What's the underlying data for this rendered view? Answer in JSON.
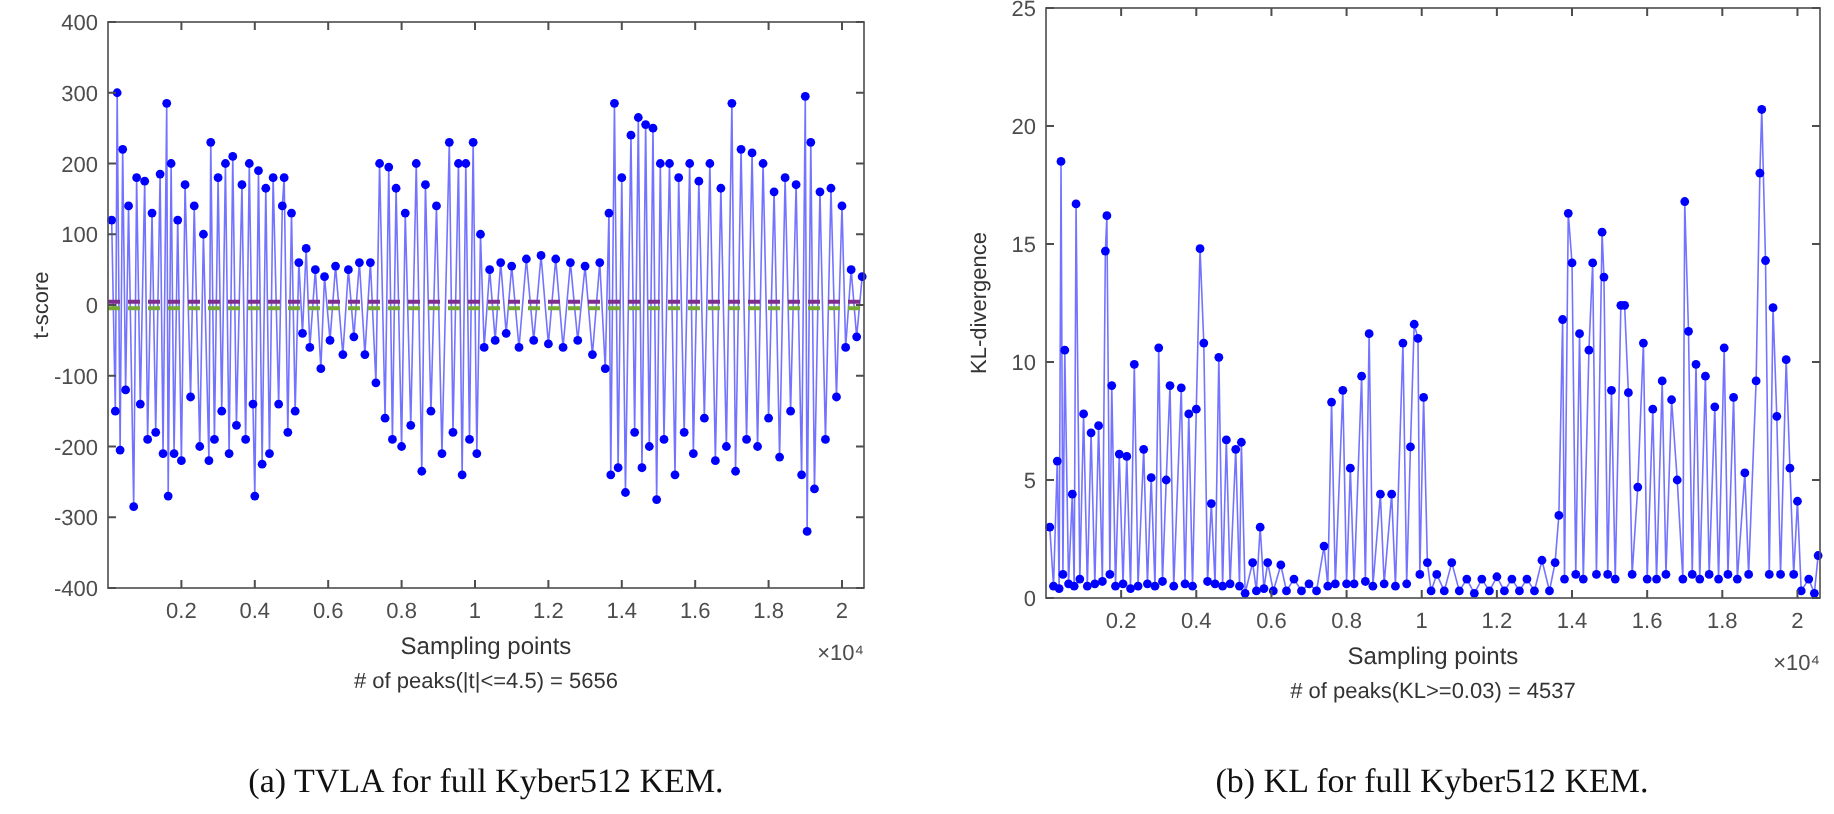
{
  "chart_data": [
    {
      "type": "line",
      "title": "(a) TVLA for full Kyber512 KEM.",
      "xlabel": "Sampling points",
      "ylabel": "t-score",
      "annotations": [
        "×10⁴",
        "# of peaks(|t|<=4.5) = 5656"
      ],
      "marker": "circle",
      "xlim": [
        0,
        2.06
      ],
      "xticks": [
        0.2,
        0.4,
        0.6,
        0.8,
        1,
        1.2,
        1.4,
        1.6,
        1.8,
        2
      ],
      "ylim": [
        -400,
        400
      ],
      "yticks": [
        -400,
        -300,
        -200,
        -100,
        0,
        100,
        200,
        300,
        400
      ],
      "ref_lines": [
        {
          "axis": "y",
          "value": 4.5,
          "color": "#7e2f8e",
          "line_style": "dashed"
        },
        {
          "axis": "y",
          "value": -4.5,
          "color": "#77ac30",
          "line_style": "dashed"
        }
      ],
      "x": [
        0.01,
        0.02,
        0.025,
        0.033,
        0.04,
        0.048,
        0.056,
        0.07,
        0.078,
        0.088,
        0.1,
        0.108,
        0.12,
        0.13,
        0.142,
        0.15,
        0.16,
        0.164,
        0.172,
        0.18,
        0.19,
        0.2,
        0.21,
        0.225,
        0.235,
        0.25,
        0.26,
        0.275,
        0.28,
        0.29,
        0.3,
        0.31,
        0.32,
        0.33,
        0.34,
        0.35,
        0.365,
        0.375,
        0.385,
        0.395,
        0.4,
        0.41,
        0.42,
        0.43,
        0.44,
        0.45,
        0.465,
        0.475,
        0.48,
        0.49,
        0.5,
        0.51,
        0.52,
        0.53,
        0.54,
        0.55,
        0.565,
        0.58,
        0.59,
        0.605,
        0.62,
        0.64,
        0.655,
        0.67,
        0.685,
        0.7,
        0.715,
        0.73,
        0.74,
        0.755,
        0.765,
        0.775,
        0.785,
        0.8,
        0.81,
        0.825,
        0.84,
        0.855,
        0.865,
        0.88,
        0.895,
        0.91,
        0.93,
        0.94,
        0.955,
        0.965,
        0.975,
        0.985,
        0.995,
        1.005,
        1.015,
        1.025,
        1.04,
        1.055,
        1.07,
        1.085,
        1.1,
        1.12,
        1.14,
        1.16,
        1.18,
        1.2,
        1.22,
        1.24,
        1.26,
        1.28,
        1.3,
        1.32,
        1.34,
        1.355,
        1.365,
        1.37,
        1.38,
        1.39,
        1.4,
        1.41,
        1.425,
        1.435,
        1.445,
        1.455,
        1.465,
        1.475,
        1.485,
        1.495,
        1.505,
        1.515,
        1.53,
        1.545,
        1.555,
        1.57,
        1.585,
        1.595,
        1.61,
        1.625,
        1.64,
        1.655,
        1.67,
        1.685,
        1.7,
        1.71,
        1.725,
        1.74,
        1.755,
        1.77,
        1.785,
        1.8,
        1.815,
        1.83,
        1.845,
        1.86,
        1.875,
        1.89,
        1.9,
        1.905,
        1.915,
        1.925,
        1.94,
        1.955,
        1.97,
        1.985,
        2,
        2.01,
        2.025,
        2.04,
        2.055
      ],
      "series": [
        {
          "color": "#0000ff",
          "values": [
            120,
            -150,
            300,
            -205,
            220,
            -120,
            140,
            -285,
            180,
            -140,
            175,
            -190,
            130,
            -180,
            185,
            -210,
            285,
            -270,
            200,
            -210,
            120,
            -220,
            170,
            -130,
            140,
            -200,
            100,
            -220,
            230,
            -190,
            180,
            -150,
            200,
            -210,
            210,
            -170,
            170,
            -190,
            200,
            -140,
            -270,
            190,
            -225,
            165,
            -210,
            180,
            -140,
            140,
            180,
            -180,
            130,
            -150,
            60,
            -40,
            80,
            -60,
            50,
            -90,
            40,
            -50,
            55,
            -70,
            50,
            -45,
            60,
            -70,
            60,
            -110,
            200,
            -160,
            195,
            -190,
            165,
            -200,
            130,
            -170,
            200,
            -235,
            170,
            -150,
            140,
            -210,
            230,
            -180,
            200,
            -240,
            200,
            -190,
            230,
            -210,
            100,
            -60,
            50,
            -50,
            60,
            -40,
            55,
            -60,
            65,
            -50,
            70,
            -55,
            65,
            -60,
            60,
            -50,
            55,
            -70,
            60,
            -90,
            130,
            -240,
            285,
            -230,
            180,
            -265,
            240,
            -180,
            265,
            -230,
            255,
            -200,
            250,
            -275,
            200,
            -190,
            200,
            -240,
            180,
            -180,
            200,
            -210,
            175,
            -160,
            200,
            -220,
            165,
            -200,
            285,
            -235,
            220,
            -190,
            215,
            -200,
            200,
            -160,
            160,
            -215,
            180,
            -150,
            170,
            -240,
            295,
            -320,
            230,
            -260,
            160,
            -190,
            165,
            -130,
            140,
            -60,
            50,
            -45,
            40
          ]
        }
      ]
    },
    {
      "type": "line",
      "title": "(b)  KL for full Kyber512 KEM.",
      "xlabel": "Sampling points",
      "ylabel": "KL-divergence",
      "annotations": [
        "×10⁴",
        "# of peaks(KL>=0.03) = 4537"
      ],
      "marker": "circle",
      "xlim": [
        0,
        2.06
      ],
      "xticks": [
        0.2,
        0.4,
        0.6,
        0.8,
        1,
        1.2,
        1.4,
        1.6,
        1.8,
        2
      ],
      "ylim": [
        0,
        25
      ],
      "yticks": [
        0,
        5,
        10,
        15,
        20,
        25
      ],
      "x": [
        0.01,
        0.02,
        0.03,
        0.035,
        0.04,
        0.045,
        0.05,
        0.06,
        0.07,
        0.075,
        0.08,
        0.09,
        0.1,
        0.11,
        0.12,
        0.13,
        0.14,
        0.15,
        0.158,
        0.162,
        0.17,
        0.175,
        0.185,
        0.195,
        0.205,
        0.215,
        0.225,
        0.235,
        0.245,
        0.26,
        0.27,
        0.28,
        0.29,
        0.3,
        0.31,
        0.32,
        0.33,
        0.34,
        0.36,
        0.37,
        0.38,
        0.39,
        0.4,
        0.41,
        0.42,
        0.43,
        0.44,
        0.45,
        0.46,
        0.47,
        0.48,
        0.49,
        0.505,
        0.515,
        0.52,
        0.53,
        0.55,
        0.56,
        0.57,
        0.58,
        0.59,
        0.605,
        0.625,
        0.64,
        0.66,
        0.68,
        0.7,
        0.72,
        0.74,
        0.75,
        0.76,
        0.77,
        0.79,
        0.8,
        0.81,
        0.82,
        0.84,
        0.85,
        0.86,
        0.87,
        0.89,
        0.9,
        0.92,
        0.93,
        0.95,
        0.96,
        0.97,
        0.98,
        0.99,
        0.995,
        1.005,
        1.015,
        1.025,
        1.04,
        1.06,
        1.08,
        1.1,
        1.12,
        1.14,
        1.16,
        1.18,
        1.2,
        1.22,
        1.24,
        1.26,
        1.28,
        1.3,
        1.32,
        1.34,
        1.355,
        1.365,
        1.375,
        1.38,
        1.39,
        1.4,
        1.41,
        1.42,
        1.43,
        1.445,
        1.455,
        1.465,
        1.48,
        1.485,
        1.495,
        1.505,
        1.515,
        1.53,
        1.54,
        1.55,
        1.56,
        1.575,
        1.59,
        1.6,
        1.615,
        1.625,
        1.64,
        1.65,
        1.665,
        1.68,
        1.695,
        1.7,
        1.71,
        1.72,
        1.73,
        1.74,
        1.755,
        1.765,
        1.78,
        1.79,
        1.805,
        1.815,
        1.83,
        1.84,
        1.86,
        1.87,
        1.89,
        1.9,
        1.905,
        1.915,
        1.925,
        1.935,
        1.945,
        1.955,
        1.97,
        1.98,
        1.99,
        2,
        2.01,
        2.03,
        2.045,
        2.055
      ],
      "series": [
        {
          "color": "#0000ff",
          "values": [
            3,
            0.5,
            5.8,
            0.4,
            18.5,
            1,
            10.5,
            0.6,
            4.4,
            0.5,
            16.7,
            0.8,
            7.8,
            0.5,
            7,
            0.6,
            7.3,
            0.7,
            14.7,
            16.2,
            1,
            9,
            0.5,
            6.1,
            0.6,
            6,
            0.4,
            9.9,
            0.5,
            6.3,
            0.6,
            5.1,
            0.5,
            10.6,
            0.7,
            5,
            9,
            0.5,
            8.9,
            0.6,
            7.8,
            0.5,
            8,
            14.8,
            10.8,
            0.7,
            4,
            0.6,
            10.2,
            0.5,
            6.7,
            0.6,
            6.3,
            0.5,
            6.6,
            0.2,
            1.5,
            0.3,
            3,
            0.4,
            1.5,
            0.3,
            1.4,
            0.3,
            0.8,
            0.3,
            0.6,
            0.3,
            2.2,
            0.5,
            8.3,
            0.6,
            8.8,
            0.6,
            5.5,
            0.6,
            9.4,
            0.7,
            11.2,
            0.5,
            4.4,
            0.6,
            4.4,
            0.5,
            10.8,
            0.6,
            6.4,
            11.6,
            11,
            1,
            8.5,
            1.5,
            0.3,
            1,
            0.3,
            1.5,
            0.3,
            0.8,
            0.2,
            0.8,
            0.3,
            0.9,
            0.3,
            0.8,
            0.3,
            0.8,
            0.3,
            1.6,
            0.3,
            1.5,
            3.5,
            11.8,
            0.8,
            16.3,
            14.2,
            1,
            11.2,
            0.8,
            10.5,
            14.2,
            1,
            15.5,
            13.6,
            1,
            8.8,
            0.8,
            12.4,
            12.4,
            8.7,
            1,
            4.7,
            10.8,
            0.8,
            8,
            0.8,
            9.2,
            1,
            8.4,
            5,
            0.8,
            16.8,
            11.3,
            1,
            9.9,
            0.8,
            9.4,
            1,
            8.1,
            0.8,
            10.6,
            1,
            8.5,
            0.8,
            5.3,
            1,
            9.2,
            18,
            20.7,
            14.3,
            1,
            12.3,
            7.7,
            1,
            10.1,
            5.5,
            1,
            4.1,
            0.3,
            0.8,
            0.2,
            1.8
          ]
        }
      ]
    }
  ]
}
